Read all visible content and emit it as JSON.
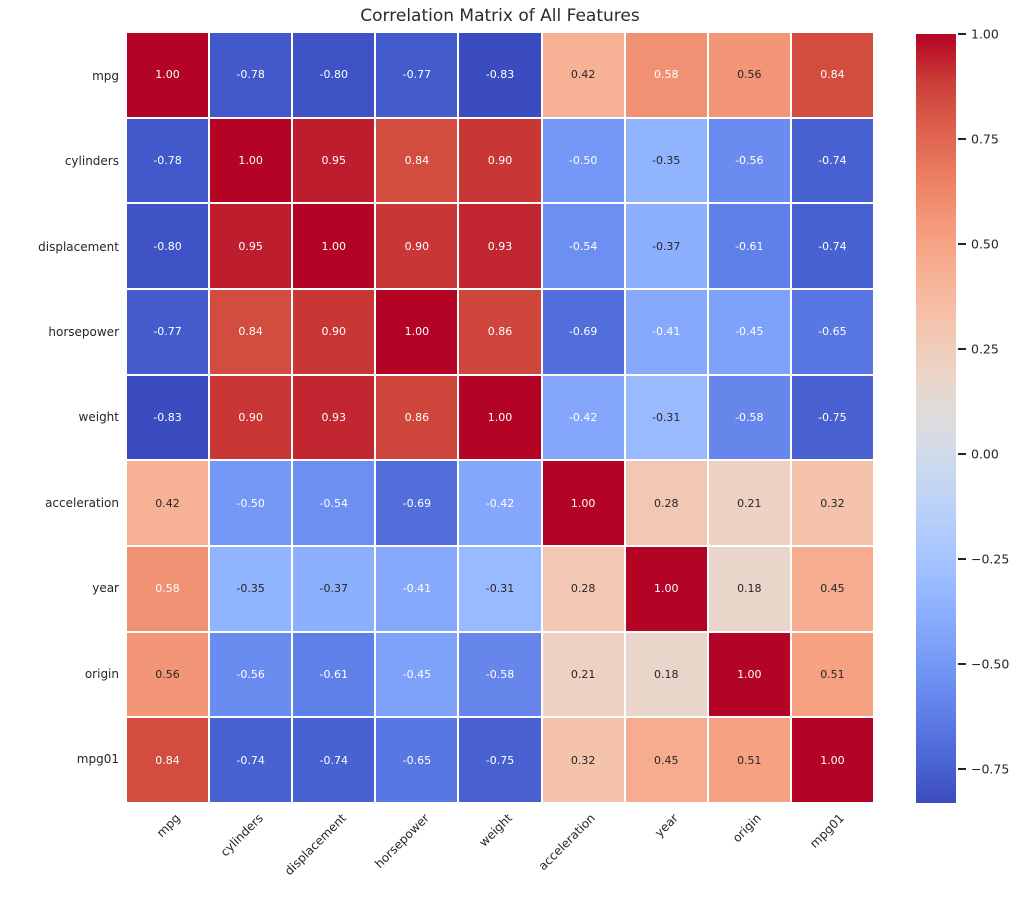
{
  "title": "Correlation Matrix of All Features",
  "chart_data": {
    "type": "heatmap",
    "title": "Correlation Matrix of All Features",
    "categories": [
      "mpg",
      "cylinders",
      "displacement",
      "horsepower",
      "weight",
      "acceleration",
      "year",
      "origin",
      "mpg01"
    ],
    "matrix": [
      [
        1.0,
        -0.78,
        -0.8,
        -0.77,
        -0.83,
        0.42,
        0.58,
        0.56,
        0.84
      ],
      [
        -0.78,
        1.0,
        0.95,
        0.84,
        0.9,
        -0.5,
        -0.35,
        -0.56,
        -0.74
      ],
      [
        -0.8,
        0.95,
        1.0,
        0.9,
        0.93,
        -0.54,
        -0.37,
        -0.61,
        -0.74
      ],
      [
        -0.77,
        0.84,
        0.9,
        1.0,
        0.86,
        -0.69,
        -0.41,
        -0.45,
        -0.65
      ],
      [
        -0.83,
        0.9,
        0.93,
        0.86,
        1.0,
        -0.42,
        -0.31,
        -0.58,
        -0.75
      ],
      [
        0.42,
        -0.5,
        -0.54,
        -0.69,
        -0.42,
        1.0,
        0.28,
        0.21,
        0.32
      ],
      [
        0.58,
        -0.35,
        -0.37,
        -0.41,
        -0.31,
        0.28,
        1.0,
        0.18,
        0.45
      ],
      [
        0.56,
        -0.56,
        -0.61,
        -0.45,
        -0.58,
        0.21,
        0.18,
        1.0,
        0.51
      ],
      [
        0.84,
        -0.74,
        -0.74,
        -0.65,
        -0.75,
        0.32,
        0.45,
        0.51,
        1.0
      ]
    ],
    "annot_format": ".2f",
    "colormap": "coolwarm",
    "vmin": -0.83,
    "vmax": 1.0,
    "grid_line_color": "#ffffff",
    "annot_color_dark": "#262626",
    "annot_color_light": "#ffffff",
    "x_tick_rotation": 45,
    "legend_position": "right-colorbar",
    "colorbar": {
      "ticks": [
        {
          "label": "1.00",
          "value": 1.0
        },
        {
          "label": "0.75",
          "value": 0.75
        },
        {
          "label": "0.50",
          "value": 0.5
        },
        {
          "label": "0.25",
          "value": 0.25
        },
        {
          "label": "0.00",
          "value": 0.0
        },
        {
          "label": "−0.25",
          "value": -0.25
        },
        {
          "label": "−0.50",
          "value": -0.5
        },
        {
          "label": "−0.75",
          "value": -0.75
        }
      ]
    },
    "colormap_stops": [
      [
        59,
        76,
        192
      ],
      [
        77,
        104,
        215
      ],
      [
        98,
        130,
        234
      ],
      [
        119,
        154,
        247
      ],
      [
        141,
        176,
        254
      ],
      [
        163,
        194,
        255
      ],
      [
        184,
        208,
        249
      ],
      [
        204,
        217,
        238
      ],
      [
        221,
        221,
        221
      ],
      [
        236,
        211,
        197
      ],
      [
        245,
        196,
        173
      ],
      [
        247,
        177,
        148
      ],
      [
        244,
        154,
        123
      ],
      [
        236,
        127,
        99
      ],
      [
        222,
        96,
        77
      ],
      [
        203,
        62,
        56
      ],
      [
        180,
        4,
        38
      ]
    ]
  }
}
